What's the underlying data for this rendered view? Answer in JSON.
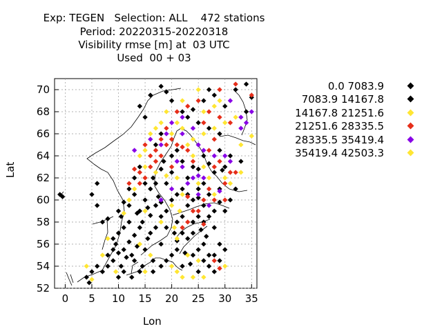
{
  "chart_data": {
    "type": "scatter",
    "title_lines": [
      "Exp: TEGEN   Selection: ALL    472 stations",
      "Period: 20220315-20220318",
      "Visibility rmse [m] at  03 UTC",
      "Used  00 + 03"
    ],
    "xlabel": "Lon",
    "ylabel": "Lat",
    "xlim": [
      -2,
      36
    ],
    "ylim": [
      52,
      71
    ],
    "xticks": [
      0,
      5,
      10,
      15,
      20,
      25,
      30,
      35
    ],
    "yticks": [
      52,
      54,
      56,
      58,
      60,
      62,
      64,
      66,
      68,
      70
    ],
    "grid": true,
    "legend_position": "right",
    "series": [
      {
        "name": "0.0 7083.9",
        "color": "#000000",
        "points": [
          [
            17,
            59.5
          ],
          [
            18,
            59.8
          ],
          [
            16,
            58.6
          ],
          [
            14,
            57.5
          ],
          [
            12,
            56.2
          ],
          [
            11,
            55.5
          ],
          [
            10,
            55.2
          ],
          [
            12.5,
            55
          ],
          [
            13,
            54.5
          ],
          [
            10.5,
            54
          ],
          [
            9,
            54.5
          ],
          [
            14,
            53.5
          ],
          [
            16.5,
            54.5
          ],
          [
            18,
            56
          ],
          [
            19,
            57.5
          ],
          [
            22,
            58.5
          ],
          [
            24,
            57
          ],
          [
            25,
            58.5
          ],
          [
            26,
            59.5
          ],
          [
            27,
            58.5
          ],
          [
            28,
            57.5
          ],
          [
            24,
            55
          ],
          [
            25,
            55.5
          ],
          [
            26,
            56
          ],
          [
            27,
            55
          ],
          [
            23,
            56.5
          ],
          [
            22,
            54
          ],
          [
            28,
            55
          ],
          [
            14,
            59
          ],
          [
            13,
            60.5
          ],
          [
            15,
            60
          ],
          [
            16,
            61
          ],
          [
            17,
            61.5
          ],
          [
            12,
            58
          ],
          [
            11,
            57.5
          ],
          [
            10,
            57
          ],
          [
            9,
            56.5
          ],
          [
            9,
            55.5
          ],
          [
            8,
            55
          ],
          [
            8,
            54
          ],
          [
            6,
            54
          ],
          [
            7,
            53.5
          ],
          [
            5,
            53.5
          ],
          [
            4,
            53
          ],
          [
            4.5,
            52.5
          ],
          [
            15,
            55.5
          ],
          [
            13.5,
            55.8
          ],
          [
            15.5,
            56.5
          ],
          [
            16,
            57
          ],
          [
            17,
            57.5
          ],
          [
            18,
            58.5
          ],
          [
            19,
            59
          ],
          [
            20,
            60
          ],
          [
            21,
            60.5
          ],
          [
            22,
            61
          ],
          [
            -0.5,
            60.3
          ],
          [
            -1,
            60.5
          ],
          [
            20,
            55
          ],
          [
            19,
            54.5
          ],
          [
            18,
            54
          ],
          [
            21,
            55.5
          ],
          [
            26,
            54.5
          ],
          [
            27,
            54
          ],
          [
            29,
            56
          ],
          [
            30,
            59
          ],
          [
            31,
            60
          ],
          [
            29,
            61
          ],
          [
            28,
            62.5
          ],
          [
            26,
            61.5
          ],
          [
            32,
            61
          ],
          [
            30,
            63
          ],
          [
            31,
            64
          ],
          [
            33,
            63.5
          ],
          [
            34,
            68
          ],
          [
            30,
            68.5
          ],
          [
            28,
            69.5
          ],
          [
            27,
            70
          ],
          [
            26,
            69
          ],
          [
            24,
            68.2
          ],
          [
            22,
            68
          ],
          [
            20,
            69
          ],
          [
            23,
            67.5
          ],
          [
            25,
            67
          ],
          [
            27,
            66.5
          ],
          [
            29,
            66
          ],
          [
            32,
            70
          ],
          [
            34,
            70.5
          ],
          [
            35,
            69.3
          ],
          [
            18,
            66
          ],
          [
            17,
            65
          ],
          [
            15,
            67.5
          ],
          [
            14,
            68.5
          ],
          [
            16,
            69.5
          ],
          [
            18,
            70.3
          ],
          [
            19,
            69.8
          ],
          [
            21,
            64.5
          ],
          [
            20,
            64
          ],
          [
            22,
            63.5
          ],
          [
            24,
            63
          ],
          [
            26,
            64
          ],
          [
            29,
            64.5
          ],
          [
            13,
            62
          ],
          [
            12,
            61
          ],
          [
            14,
            63
          ],
          [
            11,
            59.8
          ],
          [
            10,
            59
          ],
          [
            8,
            58.3
          ],
          [
            7,
            58
          ],
          [
            6,
            59.5
          ],
          [
            5,
            60.5
          ],
          [
            6,
            61.5
          ],
          [
            23,
            59.5
          ],
          [
            24,
            60
          ],
          [
            25,
            61
          ],
          [
            22,
            57
          ],
          [
            21,
            56.3
          ],
          [
            16.5,
            53.5
          ],
          [
            14.5,
            54
          ],
          [
            11,
            53.5
          ],
          [
            12.5,
            53
          ],
          [
            10,
            53
          ],
          [
            9.5,
            56
          ],
          [
            11.5,
            54.8
          ],
          [
            13,
            56.8
          ],
          [
            14.5,
            58
          ],
          [
            15.5,
            59.3
          ],
          [
            17.5,
            60.3
          ],
          [
            19,
            61.5
          ],
          [
            20,
            62.5
          ],
          [
            23,
            62
          ],
          [
            25,
            62.8
          ],
          [
            27,
            63.3
          ],
          [
            29.5,
            62.7
          ],
          [
            24,
            58
          ],
          [
            25.5,
            57.3
          ],
          [
            26.5,
            56.7
          ],
          [
            28,
            59
          ],
          [
            29,
            59.8
          ],
          [
            27,
            60.5
          ],
          [
            25,
            60.2
          ],
          [
            26,
            58
          ],
          [
            23,
            60.5
          ],
          [
            21,
            58
          ],
          [
            20.5,
            57
          ],
          [
            22.5,
            55.2
          ],
          [
            23.5,
            54.2
          ],
          [
            25,
            53.5
          ],
          [
            28,
            53.5
          ],
          [
            30,
            55.5
          ],
          [
            29,
            54.5
          ],
          [
            10.5,
            58.5
          ],
          [
            12,
            59.5
          ],
          [
            13.5,
            58.8
          ],
          [
            15,
            61.5
          ],
          [
            16.5,
            62
          ],
          [
            18,
            62.8
          ],
          [
            18.5,
            63.5
          ]
        ]
      },
      {
        "name": "7083.9 14167.8",
        "color": "#000000",
        "points": []
      },
      {
        "name": "14167.8 21251.6",
        "color": "#ffe633",
        "points": [
          [
            20,
            54
          ],
          [
            21,
            53.5
          ],
          [
            22,
            53
          ],
          [
            24,
            53
          ],
          [
            26,
            53
          ],
          [
            30,
            54
          ],
          [
            23,
            55
          ],
          [
            25,
            54.5
          ],
          [
            21,
            56.5
          ],
          [
            20.5,
            57.5
          ],
          [
            21.5,
            59
          ],
          [
            20,
            59.5
          ],
          [
            22,
            60.5
          ],
          [
            21,
            62
          ],
          [
            19,
            62.2
          ],
          [
            17,
            62.5
          ],
          [
            15,
            63
          ],
          [
            14,
            64
          ],
          [
            15,
            64.5
          ],
          [
            16,
            66
          ],
          [
            17,
            66.5
          ],
          [
            18,
            67
          ],
          [
            19,
            68
          ],
          [
            21,
            67
          ],
          [
            20,
            66
          ],
          [
            22,
            66.5
          ],
          [
            23,
            65
          ],
          [
            24,
            65.5
          ],
          [
            26,
            66
          ],
          [
            28,
            66.5
          ],
          [
            30,
            67
          ],
          [
            32,
            67.5
          ],
          [
            35,
            65.8
          ],
          [
            33,
            65
          ],
          [
            26,
            68
          ],
          [
            28,
            68.5
          ],
          [
            22,
            69
          ],
          [
            25,
            70
          ],
          [
            29,
            69
          ],
          [
            13,
            61
          ],
          [
            12,
            60
          ],
          [
            11,
            58.8
          ],
          [
            15,
            59
          ],
          [
            8,
            56.5
          ],
          [
            7,
            55
          ],
          [
            4,
            54
          ],
          [
            5,
            52.8
          ],
          [
            9.5,
            53.5
          ],
          [
            15,
            53.5
          ],
          [
            25,
            61.5
          ],
          [
            27,
            62
          ],
          [
            30,
            62
          ],
          [
            33,
            62.5
          ],
          [
            24,
            64
          ],
          [
            26,
            63
          ],
          [
            31,
            61.5
          ],
          [
            28,
            60.5
          ],
          [
            18,
            58
          ],
          [
            16,
            55
          ],
          [
            14,
            56
          ]
        ]
      },
      {
        "name": "21251.6 28335.5",
        "color": "#e62e1a",
        "points": [
          [
            14,
            61.5
          ],
          [
            15,
            62
          ],
          [
            16,
            63
          ],
          [
            17,
            63.5
          ],
          [
            18,
            64
          ],
          [
            19,
            65
          ],
          [
            20,
            65.5
          ],
          [
            21,
            65
          ],
          [
            22,
            64.8
          ],
          [
            23,
            64.5
          ],
          [
            24,
            63.5
          ],
          [
            16,
            64
          ],
          [
            15,
            65
          ],
          [
            17,
            64.5
          ],
          [
            18,
            65.5
          ],
          [
            19,
            66.5
          ],
          [
            21,
            68
          ],
          [
            23,
            68.5
          ],
          [
            25,
            69
          ],
          [
            27,
            68
          ],
          [
            29,
            67.5
          ],
          [
            31,
            67
          ],
          [
            29,
            70
          ],
          [
            32,
            70.5
          ],
          [
            35,
            69.5
          ],
          [
            26,
            67
          ],
          [
            28,
            65.5
          ],
          [
            27,
            64.5
          ],
          [
            29,
            63.5
          ],
          [
            31,
            62.5
          ],
          [
            28,
            63
          ],
          [
            30,
            61.5
          ],
          [
            27,
            61
          ],
          [
            26,
            60
          ],
          [
            28,
            60
          ],
          [
            25,
            59
          ],
          [
            24,
            59
          ],
          [
            23,
            58
          ],
          [
            22,
            57.5
          ],
          [
            29,
            53.8
          ],
          [
            28,
            54.5
          ],
          [
            26,
            57.8
          ],
          [
            30,
            60
          ],
          [
            32,
            62.5
          ],
          [
            14,
            62.5
          ],
          [
            13,
            62.8
          ],
          [
            12,
            61.5
          ],
          [
            23,
            60.3
          ],
          [
            20,
            63
          ]
        ]
      },
      {
        "name": "28335.5 35419.4",
        "color": "#8800e6",
        "points": [
          [
            13,
            64.5
          ],
          [
            19,
            66
          ],
          [
            20,
            67
          ],
          [
            22,
            67.5
          ],
          [
            24,
            66.5
          ],
          [
            25,
            65
          ],
          [
            26,
            64.5
          ],
          [
            28,
            64
          ],
          [
            30,
            64
          ],
          [
            31,
            63.5
          ],
          [
            33,
            67.5
          ],
          [
            34,
            67
          ],
          [
            35,
            68
          ],
          [
            33,
            66.5
          ],
          [
            31,
            69
          ],
          [
            24,
            62
          ],
          [
            22,
            63
          ],
          [
            23,
            61.5
          ],
          [
            25,
            62.2
          ],
          [
            20,
            61
          ],
          [
            18,
            60
          ],
          [
            21,
            63.5
          ],
          [
            27,
            59.5
          ],
          [
            25,
            60.5
          ],
          [
            29,
            60.8
          ],
          [
            26,
            62
          ],
          [
            22,
            66
          ],
          [
            18,
            65
          ],
          [
            16,
            65.5
          ]
        ]
      },
      {
        "name": "35419.4 42503.3",
        "color": "#ffe633",
        "points": []
      }
    ]
  }
}
